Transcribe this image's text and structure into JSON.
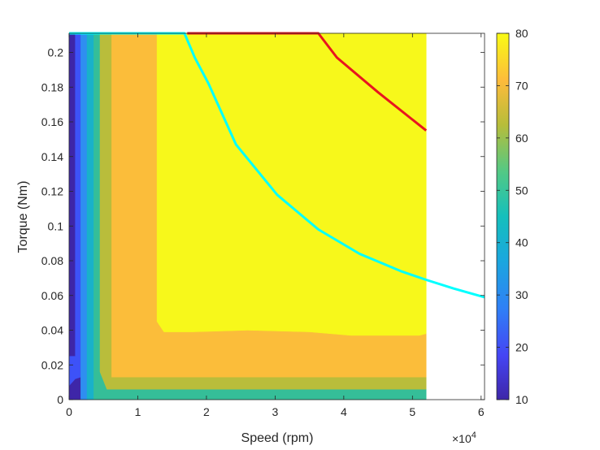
{
  "chart_data": {
    "type": "contour",
    "title": "",
    "xlabel": "Speed (rpm)",
    "ylabel": "Torque (Nm)",
    "x_exponent_label": "×10",
    "x_exponent_power": "4",
    "xlim": [
      0,
      60500
    ],
    "ylim": [
      0,
      0.211
    ],
    "xticks": [
      0,
      10000,
      20000,
      30000,
      40000,
      50000,
      60000
    ],
    "xtick_labels": [
      "0",
      "1",
      "2",
      "3",
      "4",
      "5",
      "6"
    ],
    "yticks": [
      0,
      0.02,
      0.04,
      0.06,
      0.08,
      0.1,
      0.12,
      0.14,
      0.16,
      0.18,
      0.2
    ],
    "ytick_labels": [
      "0",
      "0.02",
      "0.04",
      "0.06",
      "0.08",
      "0.1",
      "0.12",
      "0.14",
      "0.16",
      "0.18",
      "0.2"
    ],
    "data_extent": {
      "xmax": 52000,
      "ymax": 0.211
    },
    "colorbar": {
      "range": [
        10,
        80
      ],
      "ticks": [
        10,
        20,
        30,
        40,
        50,
        60,
        70,
        80
      ],
      "tick_labels": [
        "10",
        "20",
        "30",
        "40",
        "50",
        "60",
        "70",
        "80"
      ]
    },
    "regions": [
      {
        "name": "level-10",
        "color": "#3e26a8",
        "polygon": [
          [
            0,
            0
          ],
          [
            2700,
            0
          ],
          [
            2700,
            0.211
          ],
          [
            0,
            0.211
          ]
        ]
      },
      {
        "name": "level-20",
        "color": "#3d52f8",
        "polygon": [
          [
            0,
            0.008
          ],
          [
            900,
            0.012
          ],
          [
            1700,
            0.013
          ],
          [
            1700,
            0.0
          ],
          [
            2700,
            0
          ],
          [
            2700,
            0.211
          ],
          [
            900,
            0.211
          ],
          [
            900,
            0.025
          ],
          [
            0,
            0.025
          ]
        ]
      },
      {
        "name": "level-25",
        "color": "#2f8ef0",
        "polygon": [
          [
            1700,
            0
          ],
          [
            2600,
            0
          ],
          [
            2600,
            0.211
          ],
          [
            1700,
            0.211
          ]
        ]
      },
      {
        "name": "level-40",
        "color": "#19b1c9",
        "polygon": [
          [
            2600,
            0
          ],
          [
            3600,
            0
          ],
          [
            3600,
            0.211
          ],
          [
            2600,
            0.211
          ]
        ]
      },
      {
        "name": "level-50",
        "color": "#35be98",
        "polygon": [
          [
            3600,
            0
          ],
          [
            52000,
            0
          ],
          [
            52000,
            0.006
          ],
          [
            5500,
            0.006
          ],
          [
            4500,
            0.016
          ],
          [
            4500,
            0.211
          ],
          [
            3600,
            0.211
          ]
        ]
      },
      {
        "name": "level-60",
        "color": "#b9bd3b",
        "polygon": [
          [
            4500,
            0.016
          ],
          [
            5500,
            0.006
          ],
          [
            52000,
            0.006
          ],
          [
            52000,
            0.013
          ],
          [
            6200,
            0.013
          ],
          [
            6200,
            0.211
          ],
          [
            4500,
            0.211
          ]
        ]
      },
      {
        "name": "level-70",
        "color": "#fbbd3a",
        "polygon": [
          [
            6200,
            0.013
          ],
          [
            52000,
            0.013
          ],
          [
            52000,
            0.211
          ],
          [
            6200,
            0.211
          ]
        ]
      },
      {
        "name": "level-80",
        "color": "#f7f81b",
        "polygon": [
          [
            12800,
            0.211
          ],
          [
            12800,
            0.045
          ],
          [
            13800,
            0.039
          ],
          [
            18000,
            0.039
          ],
          [
            26000,
            0.04
          ],
          [
            35000,
            0.039
          ],
          [
            41000,
            0.037
          ],
          [
            51000,
            0.037
          ],
          [
            52000,
            0.038
          ],
          [
            52000,
            0.211
          ]
        ]
      }
    ],
    "series": [
      {
        "name": "cyan-curve",
        "color": "#00ffff",
        "x": [
          0,
          16800,
          18300,
          20300,
          24300,
          30300,
          36300,
          42300,
          48300,
          52000,
          56000,
          60500
        ],
        "y": [
          0.211,
          0.211,
          0.197,
          0.182,
          0.147,
          0.118,
          0.098,
          0.084,
          0.074,
          0.069,
          0.064,
          0.059
        ]
      },
      {
        "name": "red-curve",
        "color": "#e8151f",
        "x": [
          17200,
          36300,
          39000,
          45000,
          52000
        ],
        "y": [
          0.211,
          0.211,
          0.197,
          0.177,
          0.155
        ]
      }
    ]
  }
}
